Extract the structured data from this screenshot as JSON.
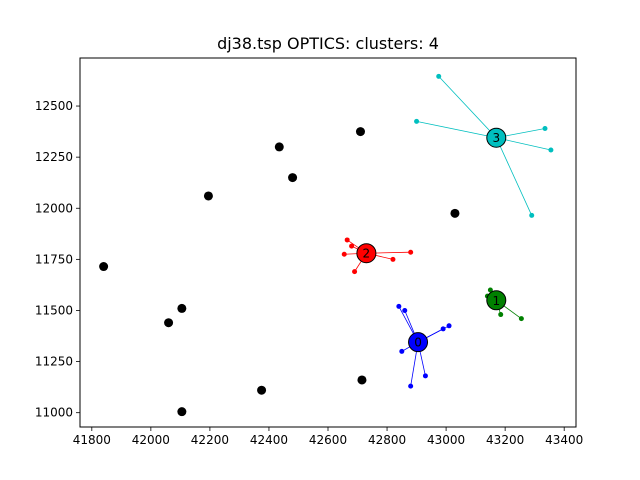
{
  "chart_data": {
    "type": "scatter",
    "title": "dj38.tsp OPTICS: clusters: 4",
    "xlabel": "",
    "ylabel": "",
    "xlim": [
      41760,
      43440
    ],
    "ylim": [
      10930,
      12735
    ],
    "grid": false,
    "xticks": [
      41800,
      42000,
      42200,
      42400,
      42600,
      42800,
      43000,
      43200,
      43400
    ],
    "yticks": [
      11000,
      11250,
      11500,
      11750,
      12000,
      12250,
      12500
    ],
    "colors": {
      "cluster_0": "#0000ff",
      "cluster_1": "#008000",
      "cluster_2": "#ff0000",
      "cluster_3": "#00bfbf",
      "noise": "#000000"
    },
    "clusters": [
      {
        "label": "0",
        "color": "#0000ff",
        "center": [
          42905,
          11345
        ],
        "points": [
          [
            42840,
            11520
          ],
          [
            42860,
            11500
          ],
          [
            42850,
            11300
          ],
          [
            42880,
            11130
          ],
          [
            42930,
            11180
          ],
          [
            42990,
            11410
          ],
          [
            43010,
            11425
          ],
          [
            42905,
            11310
          ]
        ]
      },
      {
        "label": "1",
        "color": "#008000",
        "center": [
          43170,
          11550
        ],
        "points": [
          [
            43150,
            11600
          ],
          [
            43140,
            11570
          ],
          [
            43185,
            11480
          ],
          [
            43255,
            11460
          ],
          [
            43160,
            11580
          ]
        ]
      },
      {
        "label": "2",
        "color": "#ff0000",
        "center": [
          42730,
          11780
        ],
        "points": [
          [
            42665,
            11845
          ],
          [
            42680,
            11815
          ],
          [
            42655,
            11775
          ],
          [
            42690,
            11690
          ],
          [
            42820,
            11750
          ],
          [
            42880,
            11785
          ]
        ]
      },
      {
        "label": "3",
        "color": "#00bfbf",
        "center": [
          43170,
          12345
        ],
        "points": [
          [
            42975,
            12645
          ],
          [
            42900,
            12425
          ],
          [
            43335,
            12390
          ],
          [
            43355,
            12285
          ],
          [
            43290,
            11965
          ]
        ]
      }
    ],
    "noise": [
      [
        42710,
        12375
      ],
      [
        42435,
        12300
      ],
      [
        42480,
        12150
      ],
      [
        42195,
        12060
      ],
      [
        43030,
        11975
      ],
      [
        41840,
        11715
      ],
      [
        42105,
        11510
      ],
      [
        42060,
        11440
      ],
      [
        42375,
        11110
      ],
      [
        42715,
        11160
      ],
      [
        42105,
        11005
      ]
    ]
  }
}
